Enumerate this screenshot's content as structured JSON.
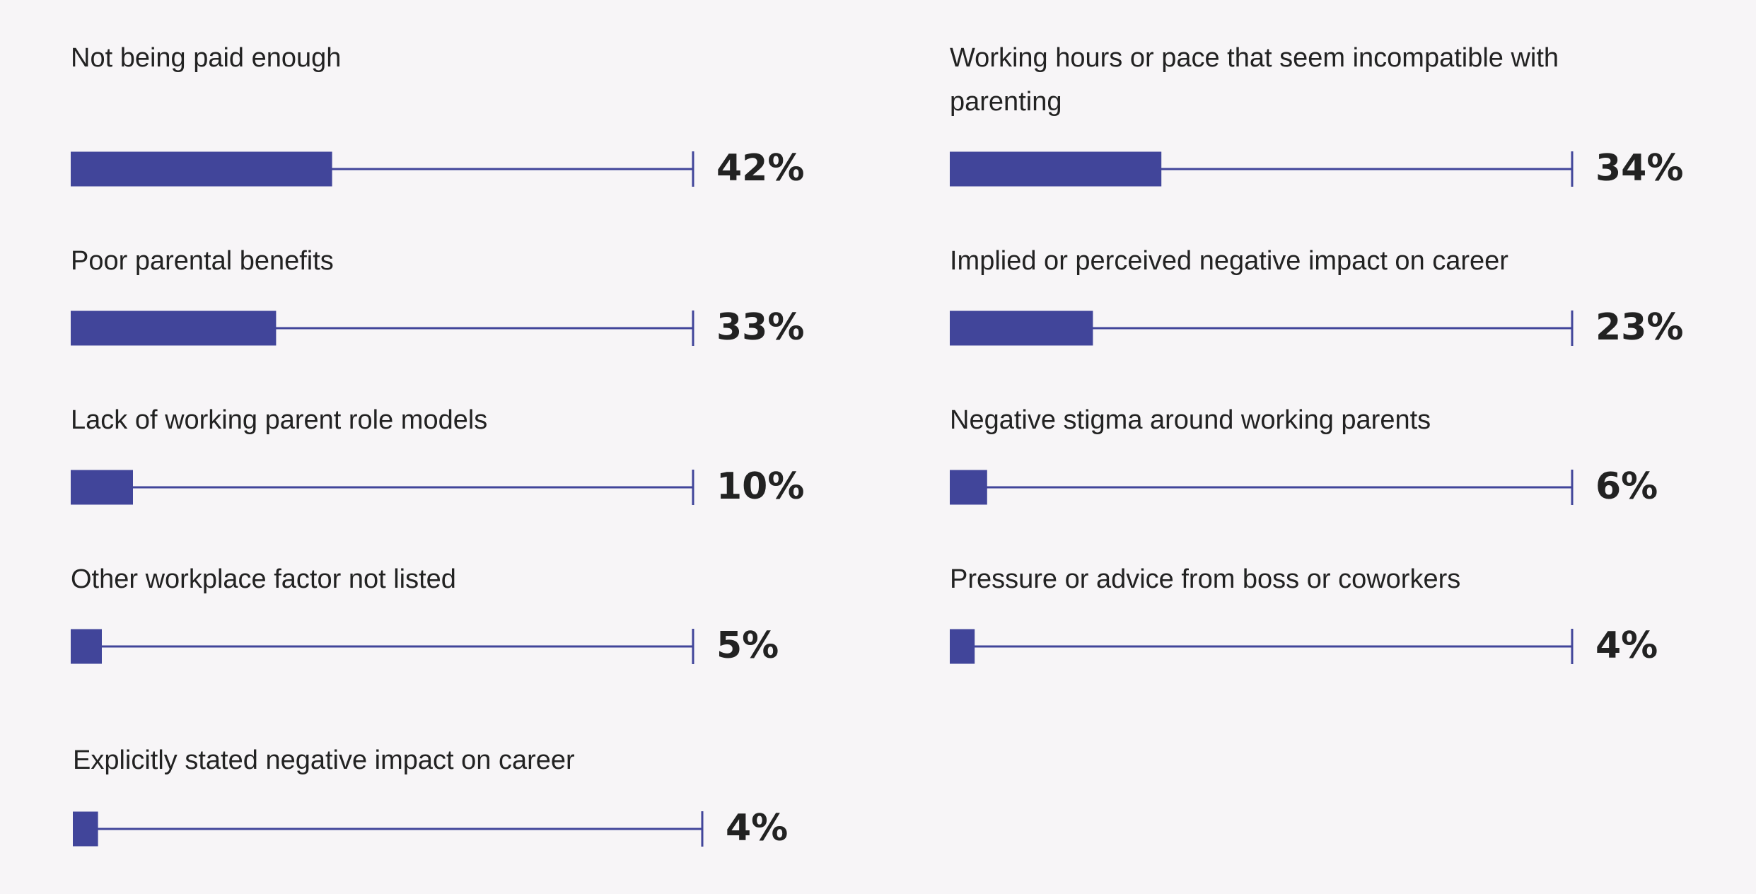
{
  "chart_data": {
    "type": "bar",
    "categories": [
      "Not being paid enough",
      "Working hours or pace that seem incompatible with parenting",
      "Poor parental benefits",
      "Implied or perceived negative impact on career",
      "Lack of working parent role models",
      "Negative stigma around working parents",
      "Other workplace factor not listed",
      "Pressure or advice from boss or coworkers",
      "Explicitly stated negative impact on career"
    ],
    "values": [
      42,
      34,
      33,
      23,
      10,
      6,
      5,
      4,
      4
    ],
    "value_labels": [
      "42%",
      "34%",
      "33%",
      "23%",
      "10%",
      "6%",
      "5%",
      "4%",
      "4%"
    ],
    "xlim": [
      0,
      100
    ],
    "color": "#41459a"
  }
}
